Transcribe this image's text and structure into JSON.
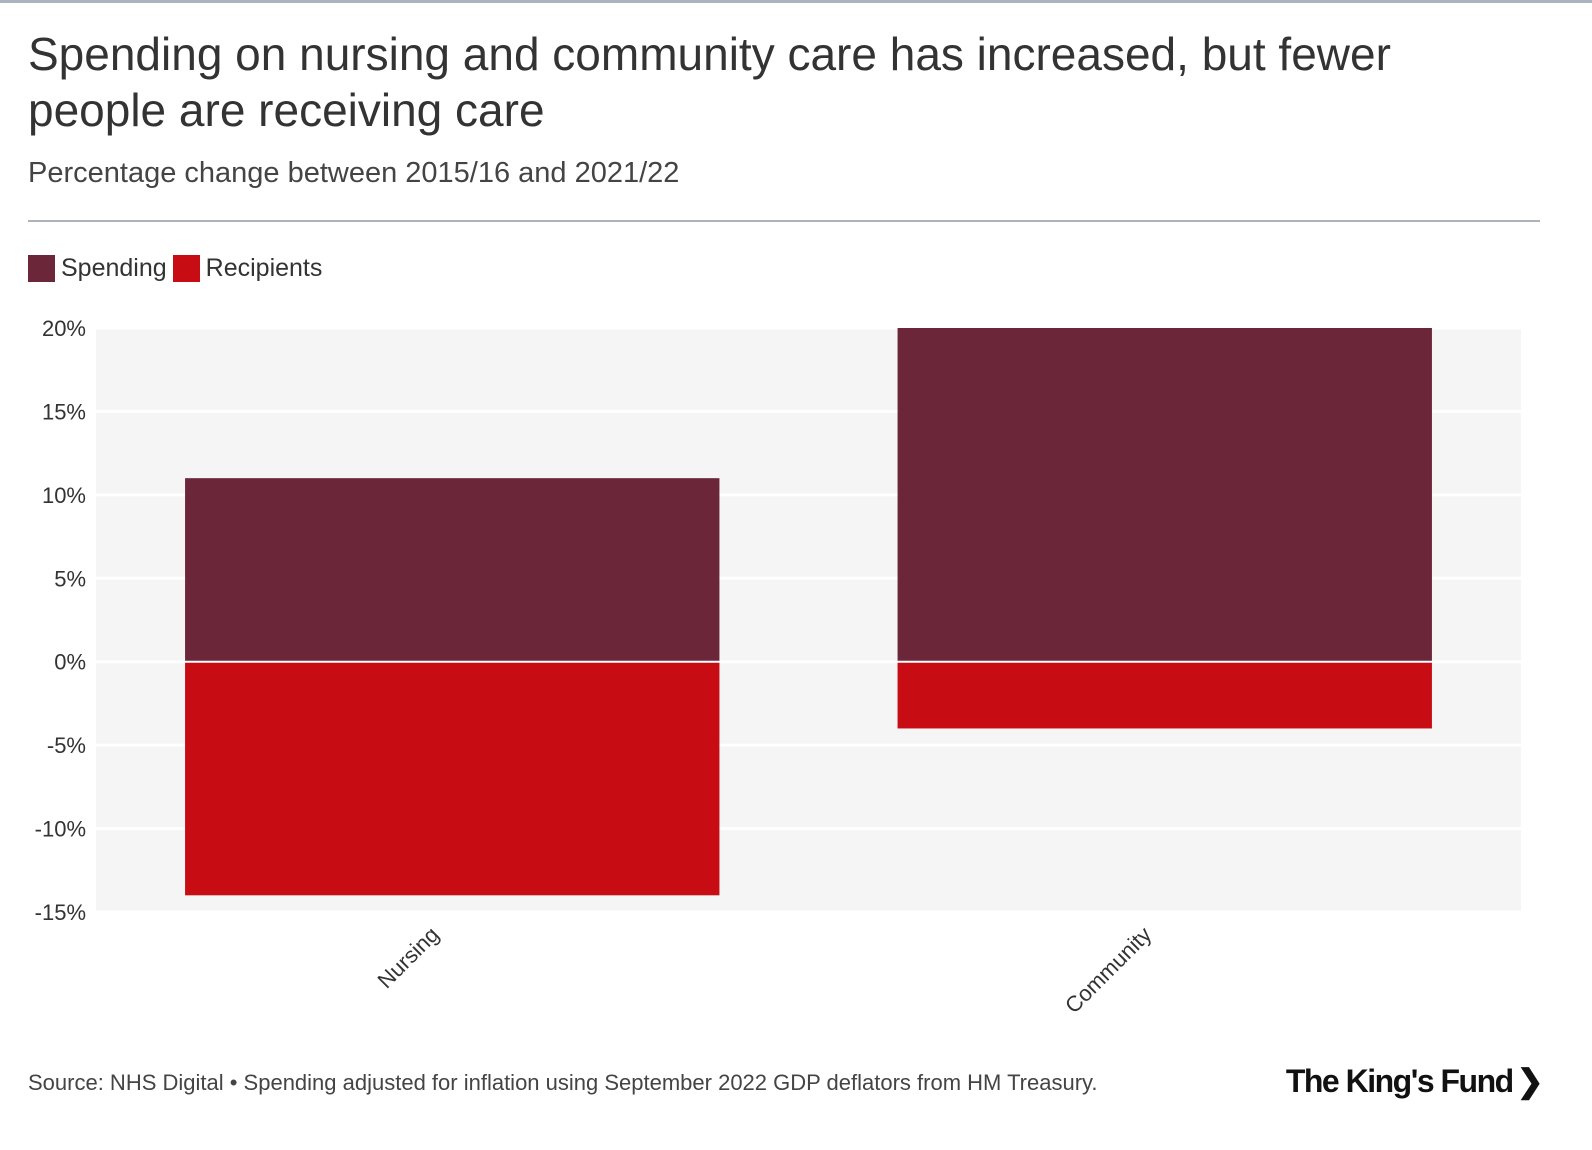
{
  "header": {
    "title": "Spending on nursing and community care has increased, but fewer people are receiving care",
    "subtitle": "Percentage change between 2015/16 and 2021/22"
  },
  "legend": [
    {
      "label": "Spending",
      "color": "#6b2739"
    },
    {
      "label": "Recipients",
      "color": "#c80c14"
    }
  ],
  "footer": {
    "source": "Source: NHS Digital • Spending adjusted for inflation using September 2022 GDP deflators from HM Treasury."
  },
  "logo": {
    "text": "The King's Fund",
    "icon": "chevron-right-icon"
  },
  "chart_data": {
    "type": "bar",
    "stacked": true,
    "categories": [
      "Nursing",
      "Community"
    ],
    "series": [
      {
        "name": "Spending",
        "values": [
          11,
          20
        ],
        "color": "#6b2739"
      },
      {
        "name": "Recipients",
        "values": [
          -14,
          -4
        ],
        "color": "#c80c14"
      }
    ],
    "ylim": [
      -15,
      20
    ],
    "yticks": [
      20,
      15,
      10,
      5,
      0,
      -5,
      -10,
      -15
    ],
    "ytick_labels": [
      "20%",
      "15%",
      "10%",
      "5%",
      "0%",
      "-5%",
      "-10%",
      "-15%"
    ],
    "grid": true,
    "legend_position": "top-left",
    "xlabel": "",
    "ylabel": ""
  }
}
